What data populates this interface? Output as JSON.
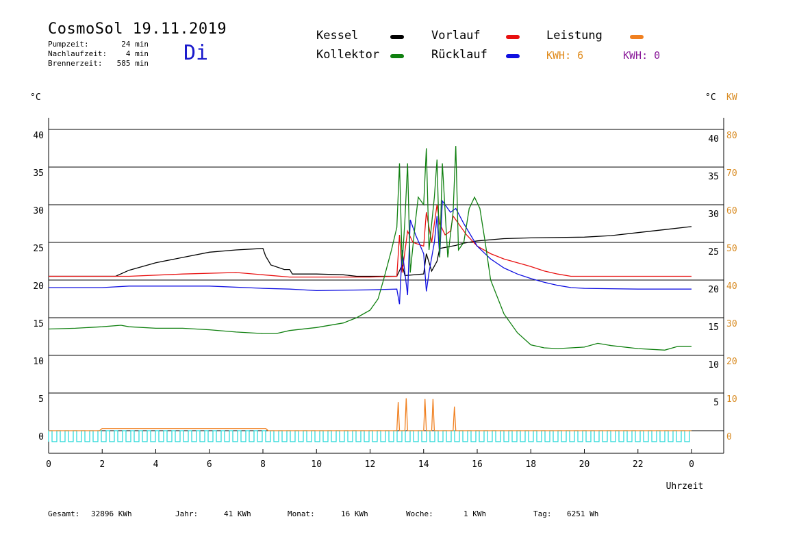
{
  "header": {
    "title": "CosmoSol 19.11.2019",
    "day": "Di",
    "info": [
      {
        "label": "Pumpzeit:",
        "value": "24 min"
      },
      {
        "label": "Nachlaufzeit:",
        "value": "4 min"
      },
      {
        "label": "Brennerzeit:",
        "value": "585 min"
      }
    ]
  },
  "legend": {
    "items": [
      {
        "label": "Kessel",
        "color": "#000000"
      },
      {
        "label": "Vorlauf",
        "color": "#e81010"
      },
      {
        "label": "Leistung",
        "color": "#f08020"
      },
      {
        "label": "Kollektor",
        "color": "#108010"
      },
      {
        "label": "Rücklauf",
        "color": "#1010e0"
      }
    ],
    "kwh1": "KWH: 6",
    "kwh2": "KWH: 0",
    "kwh1_color": "#e08a1a",
    "kwh2_color": "#8a1a9a"
  },
  "footer": {
    "gesamt": {
      "label": "Gesamt:",
      "value": "32896 KWh"
    },
    "jahr": {
      "label": "Jahr:",
      "value": "41 KWh"
    },
    "monat": {
      "label": "Monat:",
      "value": "16 KWh"
    },
    "woche": {
      "label": "Woche:",
      "value": "1 KWh"
    },
    "tag": {
      "label": "Tag:",
      "value": "6251 Wh"
    }
  },
  "chart_data": {
    "type": "line",
    "xlabel": "Uhrzeit",
    "ylabel_left": "°C",
    "ylabel_right": "°C",
    "ylabel_right2": "KW",
    "xlim": [
      0,
      24
    ],
    "ylim": [
      -3,
      42
    ],
    "x_ticks": [
      "0",
      "2",
      "4",
      "6",
      "8",
      "10",
      "12",
      "14",
      "16",
      "18",
      "20",
      "22",
      "0"
    ],
    "y_ticks_left": [
      "40",
      "35",
      "30",
      "25",
      "20",
      "15",
      "10",
      "5",
      "0"
    ],
    "y_ticks_right": [
      "40",
      "35",
      "30",
      "25",
      "20",
      "15",
      "10",
      "5"
    ],
    "y_ticks_right2": [
      "80",
      "70",
      "60",
      "50",
      "40",
      "30",
      "20",
      "10",
      "0"
    ],
    "grid": true,
    "series": [
      {
        "name": "Kessel",
        "color": "#000000",
        "points": [
          [
            0,
            20.5
          ],
          [
            2.5,
            20.5
          ],
          [
            3,
            21.3
          ],
          [
            4,
            22.3
          ],
          [
            5,
            23.0
          ],
          [
            6,
            23.7
          ],
          [
            7,
            24.0
          ],
          [
            8,
            24.2
          ],
          [
            8.1,
            23.2
          ],
          [
            8.3,
            22.0
          ],
          [
            8.8,
            21.4
          ],
          [
            9,
            21.4
          ],
          [
            9.1,
            20.8
          ],
          [
            10,
            20.8
          ],
          [
            11,
            20.7
          ],
          [
            11.5,
            20.5
          ],
          [
            13,
            20.5
          ],
          [
            13.2,
            22
          ],
          [
            13.3,
            20.6
          ],
          [
            14,
            20.8
          ],
          [
            14.1,
            23.5
          ],
          [
            14.3,
            21.2
          ],
          [
            14.5,
            22.5
          ],
          [
            14.6,
            24.2
          ],
          [
            14.9,
            24.4
          ],
          [
            15.2,
            24.6
          ],
          [
            15.5,
            24.9
          ],
          [
            16,
            25.2
          ],
          [
            17,
            25.5
          ],
          [
            18,
            25.6
          ],
          [
            20,
            25.7
          ],
          [
            21,
            25.9
          ],
          [
            22,
            26.3
          ],
          [
            23,
            26.7
          ],
          [
            24,
            27.1
          ]
        ]
      },
      {
        "name": "Vorlauf",
        "color": "#e81010",
        "points": [
          [
            0,
            20.5
          ],
          [
            2.5,
            20.5
          ],
          [
            3,
            20.5
          ],
          [
            5,
            20.8
          ],
          [
            7,
            21.0
          ],
          [
            8,
            20.7
          ],
          [
            9,
            20.4
          ],
          [
            10,
            20.4
          ],
          [
            12,
            20.4
          ],
          [
            13,
            20.5
          ],
          [
            13.1,
            26
          ],
          [
            13.2,
            21
          ],
          [
            13.4,
            26.5
          ],
          [
            13.6,
            25
          ],
          [
            14,
            24.5
          ],
          [
            14.1,
            29
          ],
          [
            14.3,
            25
          ],
          [
            14.5,
            30.0
          ],
          [
            14.6,
            27.5
          ],
          [
            14.8,
            26
          ],
          [
            15,
            26.5
          ],
          [
            15.1,
            28.5
          ],
          [
            15.3,
            27.5
          ],
          [
            15.6,
            26
          ],
          [
            16,
            24.5
          ],
          [
            16.5,
            23.5
          ],
          [
            17,
            22.8
          ],
          [
            17.5,
            22.3
          ],
          [
            18,
            21.8
          ],
          [
            18.5,
            21.2
          ],
          [
            19,
            20.8
          ],
          [
            19.5,
            20.5
          ],
          [
            20,
            20.5
          ],
          [
            22,
            20.5
          ],
          [
            24,
            20.5
          ]
        ]
      },
      {
        "name": "Rücklauf",
        "color": "#1010e0",
        "points": [
          [
            0,
            19.0
          ],
          [
            2,
            19.0
          ],
          [
            3,
            19.2
          ],
          [
            6,
            19.2
          ],
          [
            8,
            18.9
          ],
          [
            9,
            18.8
          ],
          [
            10,
            18.6
          ],
          [
            12,
            18.7
          ],
          [
            13,
            18.8
          ],
          [
            13.1,
            16.8
          ],
          [
            13.2,
            24
          ],
          [
            13.4,
            18
          ],
          [
            13.5,
            28
          ],
          [
            13.7,
            26
          ],
          [
            14,
            23.5
          ],
          [
            14.1,
            18.5
          ],
          [
            14.2,
            21
          ],
          [
            14.4,
            25
          ],
          [
            14.5,
            28.5
          ],
          [
            14.6,
            23
          ],
          [
            14.7,
            30.5
          ],
          [
            15,
            29
          ],
          [
            15.2,
            29.5
          ],
          [
            15.5,
            27.5
          ],
          [
            16,
            24.5
          ],
          [
            16.5,
            22.8
          ],
          [
            17,
            21.6
          ],
          [
            17.5,
            20.8
          ],
          [
            18,
            20.2
          ],
          [
            18.5,
            19.7
          ],
          [
            19,
            19.3
          ],
          [
            19.5,
            19.0
          ],
          [
            20,
            18.9
          ],
          [
            22,
            18.8
          ],
          [
            24,
            18.8
          ]
        ]
      },
      {
        "name": "Kollektor",
        "color": "#108010",
        "points": [
          [
            0,
            13.5
          ],
          [
            1,
            13.6
          ],
          [
            2,
            13.8
          ],
          [
            2.7,
            14.0
          ],
          [
            3,
            13.8
          ],
          [
            4,
            13.6
          ],
          [
            5,
            13.6
          ],
          [
            6,
            13.4
          ],
          [
            7,
            13.1
          ],
          [
            8,
            12.9
          ],
          [
            8.5,
            12.9
          ],
          [
            9,
            13.3
          ],
          [
            10,
            13.7
          ],
          [
            11,
            14.3
          ],
          [
            11.5,
            15.0
          ],
          [
            12,
            16.0
          ],
          [
            12.3,
            17.5
          ],
          [
            12.5,
            20.0
          ],
          [
            12.8,
            24
          ],
          [
            13,
            27
          ],
          [
            13.1,
            35.5
          ],
          [
            13.2,
            22
          ],
          [
            13.3,
            28
          ],
          [
            13.4,
            35.5
          ],
          [
            13.5,
            21
          ],
          [
            13.7,
            28
          ],
          [
            13.8,
            31
          ],
          [
            14,
            30
          ],
          [
            14.1,
            37.5
          ],
          [
            14.2,
            24
          ],
          [
            14.4,
            31
          ],
          [
            14.5,
            36
          ],
          [
            14.6,
            23
          ],
          [
            14.7,
            35.5
          ],
          [
            14.9,
            23
          ],
          [
            15.1,
            29
          ],
          [
            15.2,
            37.8
          ],
          [
            15.3,
            24
          ],
          [
            15.5,
            25
          ],
          [
            15.7,
            29.5
          ],
          [
            15.9,
            31
          ],
          [
            16.1,
            29.5
          ],
          [
            16.3,
            25
          ],
          [
            16.5,
            20
          ],
          [
            17,
            15.5
          ],
          [
            17.5,
            13
          ],
          [
            18,
            11.4
          ],
          [
            18.5,
            11.0
          ],
          [
            19,
            10.9
          ],
          [
            20,
            11.1
          ],
          [
            20.5,
            11.6
          ],
          [
            21,
            11.3
          ],
          [
            22,
            10.9
          ],
          [
            23,
            10.7
          ],
          [
            23.5,
            11.2
          ],
          [
            24,
            11.2
          ]
        ]
      },
      {
        "name": "Leistung",
        "color": "#f08020",
        "points": [
          [
            0,
            0
          ],
          [
            1.9,
            0
          ],
          [
            2,
            0.3
          ],
          [
            8.1,
            0.3
          ],
          [
            8.2,
            0
          ],
          [
            13,
            0
          ],
          [
            13.05,
            3.8
          ],
          [
            13.1,
            0
          ],
          [
            13.3,
            0
          ],
          [
            13.35,
            4.3
          ],
          [
            13.4,
            0
          ],
          [
            14,
            0
          ],
          [
            14.05,
            4.2
          ],
          [
            14.1,
            0
          ],
          [
            14.3,
            0
          ],
          [
            14.35,
            4.2
          ],
          [
            14.4,
            0
          ],
          [
            15.1,
            0
          ],
          [
            15.15,
            3.2
          ],
          [
            15.2,
            0
          ],
          [
            24,
            0
          ]
        ]
      }
    ]
  }
}
